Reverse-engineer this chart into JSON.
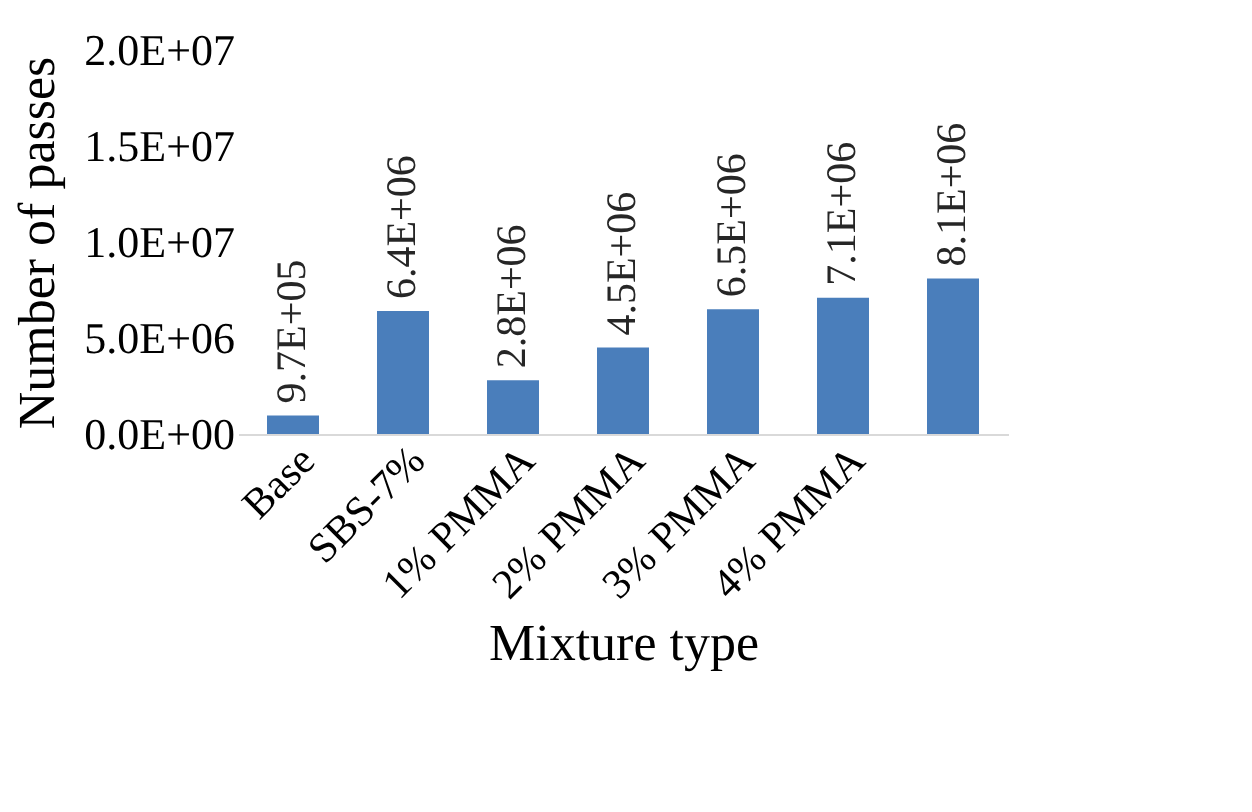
{
  "chart_data": {
    "type": "bar",
    "categories": [
      "Base",
      "SBS-7%",
      "1% PMMA",
      "2% PMMA",
      "3% PMMA",
      "4% PMMA",
      null
    ],
    "values": [
      970000,
      6400000,
      2800000,
      4500000,
      6500000,
      7100000,
      8100000
    ],
    "value_labels": [
      "9.7E+05",
      "6.4E+06",
      "2.8E+06",
      "4.5E+06",
      "6.5E+06",
      "7.1E+06",
      "8.1E+06"
    ],
    "color": "#4a7ebb",
    "xlabel": "Mixture type",
    "ylabel": "Number of passes",
    "ylim": [
      0,
      20000000
    ],
    "yticks": [
      {
        "value": 0,
        "label": "0.0E+00"
      },
      {
        "value": 5000000,
        "label": "5.0E+06"
      },
      {
        "value": 10000000,
        "label": "1.0E+07"
      },
      {
        "value": 15000000,
        "label": "1.5E+07"
      },
      {
        "value": 20000000,
        "label": "2.0E+07"
      }
    ],
    "grid": false
  }
}
